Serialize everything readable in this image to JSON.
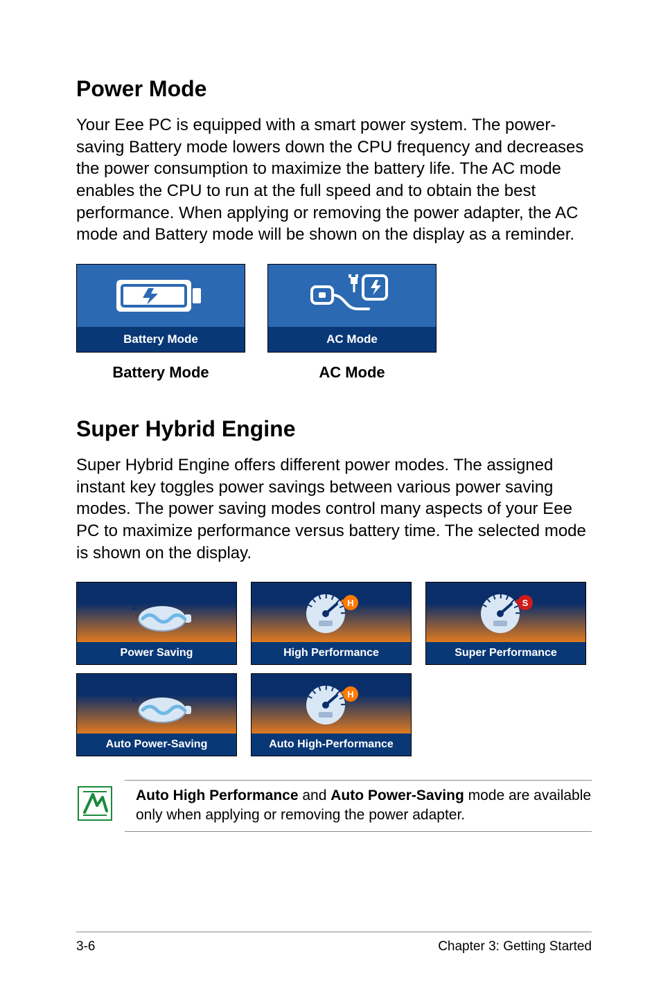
{
  "section1": {
    "heading": "Power Mode",
    "body": "Your Eee PC is equipped with a smart power system. The power-saving Battery mode lowers down the CPU frequency and decreases the power consumption to maximize the battery life. The AC mode enables the CPU to run at the full speed and to obtain the best performance. When applying or removing the power adapter, the AC mode and Battery mode will be shown on the display as a reminder."
  },
  "mode_cards": {
    "card_bg": "#2c69b3",
    "label_bg": "#093877",
    "label_color": "#ffffff",
    "battery": {
      "label": "Battery Mode",
      "caption": "Battery Mode"
    },
    "ac": {
      "label": "AC Mode",
      "caption": "AC Mode"
    }
  },
  "section2": {
    "heading": "Super Hybrid Engine",
    "body": "Super Hybrid Engine offers different power modes. The assigned instant key toggles power savings between various power saving modes. The power saving modes control many aspects of your Eee PC to maximize performance versus battery time. The selected mode is shown on the display."
  },
  "perf_cards": {
    "gradient_top": "#0a2e6a",
    "gradient_bottom": "#e07a1f",
    "label_bg": "#093877",
    "label_color": "#ffffff",
    "items": [
      {
        "label": "Power Saving",
        "icon": "battery"
      },
      {
        "label": "High Performance",
        "icon": "gauge_h"
      },
      {
        "label": "Super Performance",
        "icon": "gauge_s"
      },
      {
        "label": "Auto Power-Saving",
        "icon": "battery"
      },
      {
        "label": "Auto High-Performance",
        "icon": "gauge_h"
      }
    ]
  },
  "note": {
    "bold1": "Auto High Performance",
    "mid": " and ",
    "bold2": "Auto Power-Saving",
    "tail": " mode are available only when applying or removing the power adapter."
  },
  "footer": {
    "left": "3-6",
    "right": "Chapter 3: Getting Started"
  },
  "colors": {
    "note_icon_stroke": "#1a8a3a",
    "note_icon_fill": "#ffffff",
    "battery_icon_body": "#ffffff",
    "battery_icon_bolt": "#2c69b3",
    "ac_icon_color": "#ffffff",
    "ac_badge_bg": "#082b62",
    "gauge_dial": "#d9e7f5",
    "gauge_needle": "#0a2e6a",
    "gauge_h_badge": "#ff7a00",
    "gauge_s_badge": "#d11a1a",
    "sleep_battery_body": "#d9e7f5",
    "sleep_battery_wave": "#6fb7e6",
    "sleep_z": "#0a2e6a"
  }
}
